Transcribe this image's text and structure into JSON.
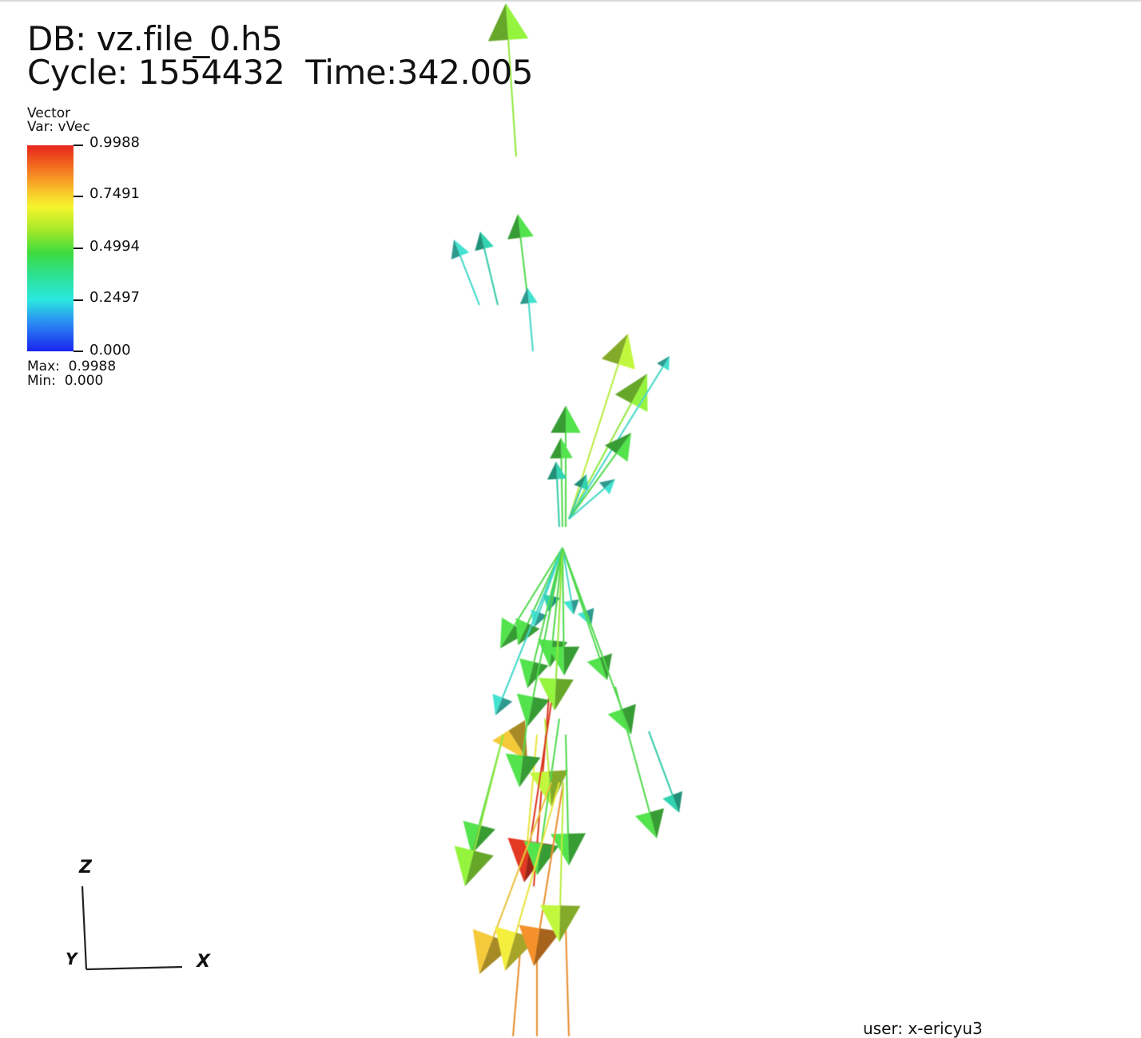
{
  "annotation": {
    "db_label": "DB: vz.file_0.h5",
    "cycle_label": "Cycle: 1554432",
    "time_label": "Time:342.005"
  },
  "legend": {
    "title_line1": "Vector",
    "title_line2": "Var: vVec",
    "ticks": [
      {
        "label": "0.9988",
        "value": 0.9988
      },
      {
        "label": "0.7491",
        "value": 0.7491
      },
      {
        "label": "0.4994",
        "value": 0.4994
      },
      {
        "label": "0.2497",
        "value": 0.2497
      },
      {
        "label": "0.000",
        "value": 0.0
      }
    ],
    "max_label": "Max:  0.9988",
    "min_label": "Min:  0.000",
    "colormap": [
      "#1a24f0",
      "#2a8cf2",
      "#2ae8e0",
      "#2de08a",
      "#3fdc3e",
      "#9ee82a",
      "#f5f52c",
      "#f9c22a",
      "#f26a1e",
      "#e8241c"
    ]
  },
  "triad": {
    "z_label": "Z",
    "y_label": "Y",
    "x_label": "X"
  },
  "user_info": "user: x-ericyu3"
}
